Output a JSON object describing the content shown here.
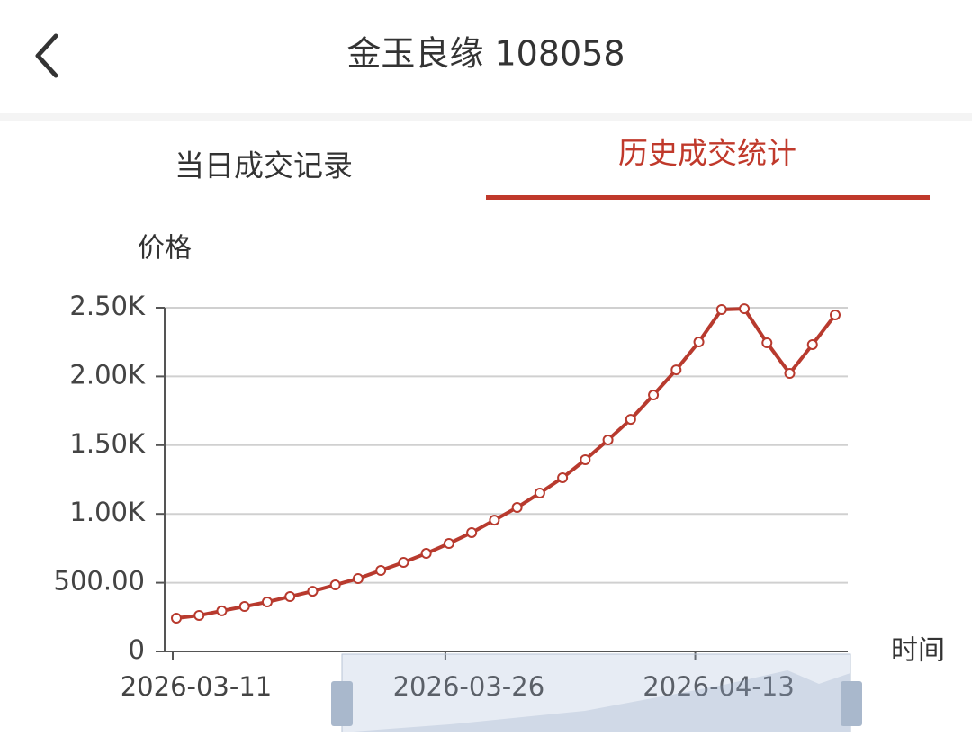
{
  "header": {
    "title": "金玉良缘 108058"
  },
  "tabs": [
    "当日成交记录",
    "历史成交统计"
  ],
  "chart_data": {
    "type": "line",
    "y_label": "价格",
    "x_label": "时间",
    "categories": [
      "2026-03-11",
      null,
      null,
      null,
      null,
      null,
      null,
      null,
      null,
      null,
      null,
      null,
      "2026-03-26",
      null,
      null,
      null,
      null,
      null,
      null,
      null,
      null,
      null,
      null,
      "2026-04-13",
      null,
      null,
      null,
      null,
      null,
      null
    ],
    "series": [
      {
        "color": "#b83a2e",
        "values": [
          242,
          262,
          295,
          327,
          360,
          399,
          438,
          484,
          530,
          589,
          648,
          713,
          785,
          864,
          955,
          1047,
          1152,
          1263,
          1394,
          1538,
          1688,
          1865,
          2048,
          2251,
          2487,
          2493,
          2245,
          2022,
          2232,
          2448
        ]
      }
    ],
    "ylim": [
      0,
      2500
    ],
    "yticks": [
      0,
      {
        "value": 500,
        "label": "500.00"
      },
      {
        "value": 1000,
        "label": "1.00K"
      },
      {
        "value": 1500,
        "label": "1.50K"
      },
      {
        "value": 2000,
        "label": "2.00K"
      },
      {
        "value": 2500,
        "label": "2.50K"
      }
    ],
    "grid": true
  }
}
